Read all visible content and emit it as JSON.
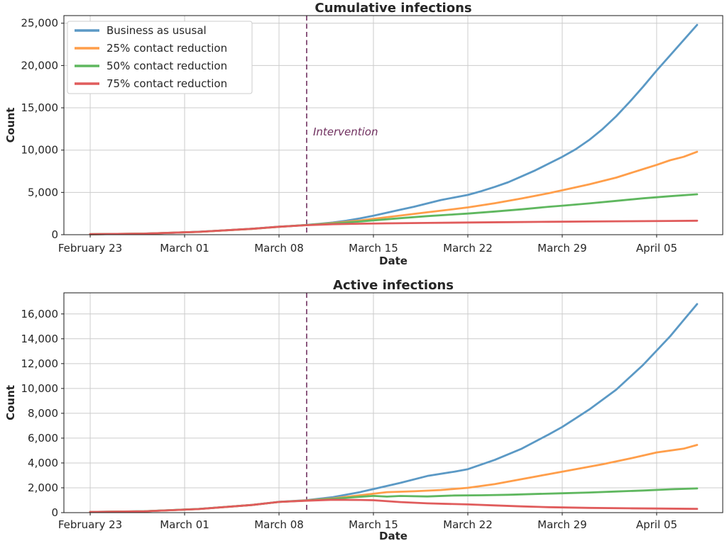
{
  "figure": {
    "background": "#ffffff",
    "text_color": "#262626",
    "grid_color": "#cccccc",
    "spine_color": "#1a1a1a"
  },
  "chart_data": [
    {
      "type": "line",
      "title": "Cumulative infections",
      "xlabel": "Date",
      "ylabel": "Count",
      "x_unit": "days since February 23",
      "xlim": [
        -1.95,
        46.9
      ],
      "ylim": [
        0,
        25900
      ],
      "grid": true,
      "legend": {
        "show": true,
        "position": "upper left"
      },
      "xticks": [
        {
          "x": 0,
          "label": "February 23"
        },
        {
          "x": 7,
          "label": "March 01"
        },
        {
          "x": 14,
          "label": "March 08"
        },
        {
          "x": 21,
          "label": "March 15"
        },
        {
          "x": 28,
          "label": "March 22"
        },
        {
          "x": 35,
          "label": "March 29"
        },
        {
          "x": 42,
          "label": "April 05"
        }
      ],
      "yticks": [
        {
          "v": 0,
          "label": "0"
        },
        {
          "v": 5000,
          "label": "5,000"
        },
        {
          "v": 10000,
          "label": "10,000"
        },
        {
          "v": 15000,
          "label": "15,000"
        },
        {
          "v": 20000,
          "label": "20,000"
        },
        {
          "v": 25000,
          "label": "25,000"
        }
      ],
      "vline": {
        "x": 16.05,
        "label": "Intervention",
        "color": "#70305f",
        "dashed": true
      },
      "series": [
        {
          "name": "Business as ususal",
          "color": "#5b99c5",
          "points": [
            [
              0,
              60
            ],
            [
              2,
              85
            ],
            [
              4,
              130
            ],
            [
              6,
              210
            ],
            [
              8,
              340
            ],
            [
              10,
              510
            ],
            [
              12,
              700
            ],
            [
              14,
              950
            ],
            [
              15,
              1040
            ],
            [
              16,
              1150
            ],
            [
              17,
              1280
            ],
            [
              18,
              1440
            ],
            [
              19,
              1650
            ],
            [
              20,
              1930
            ],
            [
              21,
              2250
            ],
            [
              22,
              2600
            ],
            [
              23,
              2950
            ],
            [
              24,
              3300
            ],
            [
              25,
              3700
            ],
            [
              26,
              4100
            ],
            [
              27,
              4400
            ],
            [
              28,
              4700
            ],
            [
              29,
              5150
            ],
            [
              30,
              5650
            ],
            [
              31,
              6200
            ],
            [
              32,
              6900
            ],
            [
              33,
              7600
            ],
            [
              34,
              8400
            ],
            [
              35,
              9200
            ],
            [
              36,
              10100
            ],
            [
              37,
              11200
            ],
            [
              38,
              12500
            ],
            [
              39,
              14000
            ],
            [
              40,
              15700
            ],
            [
              41,
              17500
            ],
            [
              42,
              19400
            ],
            [
              43,
              21200
            ],
            [
              44,
              23000
            ],
            [
              45,
              24800
            ]
          ]
        },
        {
          "name": "25% contact reduction",
          "color": "#ff9e4a",
          "points": [
            [
              0,
              55
            ],
            [
              4,
              125
            ],
            [
              8,
              330
            ],
            [
              12,
              690
            ],
            [
              14,
              930
            ],
            [
              16,
              1130
            ],
            [
              18,
              1380
            ],
            [
              20,
              1680
            ],
            [
              21,
              1880
            ],
            [
              23,
              2260
            ],
            [
              25,
              2650
            ],
            [
              27,
              3030
            ],
            [
              28,
              3230
            ],
            [
              30,
              3720
            ],
            [
              32,
              4280
            ],
            [
              34,
              4900
            ],
            [
              35,
              5250
            ],
            [
              37,
              5950
            ],
            [
              39,
              6750
            ],
            [
              41,
              7750
            ],
            [
              42,
              8250
            ],
            [
              43,
              8800
            ],
            [
              44,
              9200
            ],
            [
              45,
              9800
            ]
          ]
        },
        {
          "name": "50% contact reduction",
          "color": "#5fb75f",
          "points": [
            [
              0,
              58
            ],
            [
              4,
              128
            ],
            [
              8,
              335
            ],
            [
              12,
              695
            ],
            [
              14,
              940
            ],
            [
              16,
              1140
            ],
            [
              18,
              1330
            ],
            [
              20,
              1560
            ],
            [
              21,
              1690
            ],
            [
              23,
              1950
            ],
            [
              25,
              2200
            ],
            [
              27,
              2400
            ],
            [
              28,
              2500
            ],
            [
              30,
              2740
            ],
            [
              32,
              3000
            ],
            [
              34,
              3300
            ],
            [
              35,
              3430
            ],
            [
              37,
              3700
            ],
            [
              39,
              4000
            ],
            [
              41,
              4300
            ],
            [
              43,
              4550
            ],
            [
              45,
              4780
            ]
          ]
        },
        {
          "name": "75% contact reduction",
          "color": "#e05c5c",
          "points": [
            [
              0,
              57
            ],
            [
              4,
              127
            ],
            [
              8,
              332
            ],
            [
              12,
              692
            ],
            [
              14,
              935
            ],
            [
              16,
              1120
            ],
            [
              18,
              1240
            ],
            [
              20,
              1300
            ],
            [
              22,
              1340
            ],
            [
              25,
              1395
            ],
            [
              28,
              1440
            ],
            [
              31,
              1485
            ],
            [
              34,
              1525
            ],
            [
              37,
              1560
            ],
            [
              40,
              1595
            ],
            [
              43,
              1625
            ],
            [
              45,
              1655
            ]
          ]
        }
      ]
    },
    {
      "type": "line",
      "title": "Active infections",
      "xlabel": "Date",
      "ylabel": "Count",
      "x_unit": "days since February 23",
      "xlim": [
        -1.95,
        46.9
      ],
      "ylim": [
        0,
        17700
      ],
      "grid": true,
      "legend": {
        "show": false
      },
      "xticks": [
        {
          "x": 0,
          "label": "February 23"
        },
        {
          "x": 7,
          "label": "March 01"
        },
        {
          "x": 14,
          "label": "March 08"
        },
        {
          "x": 21,
          "label": "March 15"
        },
        {
          "x": 28,
          "label": "March 22"
        },
        {
          "x": 35,
          "label": "March 29"
        },
        {
          "x": 42,
          "label": "April 05"
        }
      ],
      "yticks": [
        {
          "v": 0,
          "label": "0"
        },
        {
          "v": 2000,
          "label": "2,000"
        },
        {
          "v": 4000,
          "label": "4,000"
        },
        {
          "v": 6000,
          "label": "6,000"
        },
        {
          "v": 8000,
          "label": "8,000"
        },
        {
          "v": 10000,
          "label": "10,000"
        },
        {
          "v": 12000,
          "label": "12,000"
        },
        {
          "v": 14000,
          "label": "14,000"
        },
        {
          "v": 16000,
          "label": "16,000"
        }
      ],
      "vline": {
        "x": 16.05,
        "label": "",
        "color": "#70305f",
        "dashed": true
      },
      "series": [
        {
          "name": "Business as ususal",
          "color": "#5b99c5",
          "points": [
            [
              0,
              55
            ],
            [
              4,
              110
            ],
            [
              8,
              290
            ],
            [
              12,
              620
            ],
            [
              14,
              870
            ],
            [
              16,
              1000
            ],
            [
              18,
              1250
            ],
            [
              20,
              1650
            ],
            [
              21,
              1900
            ],
            [
              23,
              2400
            ],
            [
              25,
              2950
            ],
            [
              27,
              3300
            ],
            [
              28,
              3500
            ],
            [
              30,
              4250
            ],
            [
              32,
              5150
            ],
            [
              34,
              6300
            ],
            [
              35,
              6900
            ],
            [
              36,
              7600
            ],
            [
              37,
              8300
            ],
            [
              39,
              9900
            ],
            [
              41,
              11900
            ],
            [
              43,
              14200
            ],
            [
              44,
              15500
            ],
            [
              45,
              16800
            ]
          ]
        },
        {
          "name": "25% contact reduction",
          "color": "#ff9e4a",
          "points": [
            [
              0,
              54
            ],
            [
              4,
              108
            ],
            [
              8,
              285
            ],
            [
              12,
              615
            ],
            [
              14,
              860
            ],
            [
              16,
              980
            ],
            [
              18,
              1150
            ],
            [
              20,
              1400
            ],
            [
              22,
              1650
            ],
            [
              24,
              1720
            ],
            [
              26,
              1820
            ],
            [
              28,
              2000
            ],
            [
              30,
              2300
            ],
            [
              32,
              2700
            ],
            [
              34,
              3100
            ],
            [
              36,
              3500
            ],
            [
              38,
              3900
            ],
            [
              40,
              4350
            ],
            [
              42,
              4850
            ],
            [
              44,
              5150
            ],
            [
              45,
              5450
            ]
          ]
        },
        {
          "name": "50% contact reduction",
          "color": "#5fb75f",
          "points": [
            [
              0,
              56
            ],
            [
              4,
              112
            ],
            [
              8,
              292
            ],
            [
              12,
              618
            ],
            [
              14,
              865
            ],
            [
              16,
              970
            ],
            [
              18,
              1120
            ],
            [
              20,
              1280
            ],
            [
              21,
              1350
            ],
            [
              22,
              1290
            ],
            [
              23,
              1340
            ],
            [
              25,
              1300
            ],
            [
              27,
              1380
            ],
            [
              29,
              1400
            ],
            [
              31,
              1440
            ],
            [
              33,
              1500
            ],
            [
              35,
              1560
            ],
            [
              37,
              1620
            ],
            [
              39,
              1700
            ],
            [
              41,
              1780
            ],
            [
              43,
              1880
            ],
            [
              45,
              1950
            ]
          ]
        },
        {
          "name": "75% contact reduction",
          "color": "#e05c5c",
          "points": [
            [
              0,
              55
            ],
            [
              4,
              110
            ],
            [
              8,
              288
            ],
            [
              12,
              616
            ],
            [
              14,
              862
            ],
            [
              16,
              960
            ],
            [
              18,
              1040
            ],
            [
              20,
              1020
            ],
            [
              21,
              1000
            ],
            [
              23,
              850
            ],
            [
              25,
              750
            ],
            [
              28,
              660
            ],
            [
              30,
              580
            ],
            [
              32,
              500
            ],
            [
              34,
              440
            ],
            [
              37,
              385
            ],
            [
              40,
              350
            ],
            [
              42,
              330
            ],
            [
              45,
              300
            ]
          ]
        }
      ]
    }
  ]
}
